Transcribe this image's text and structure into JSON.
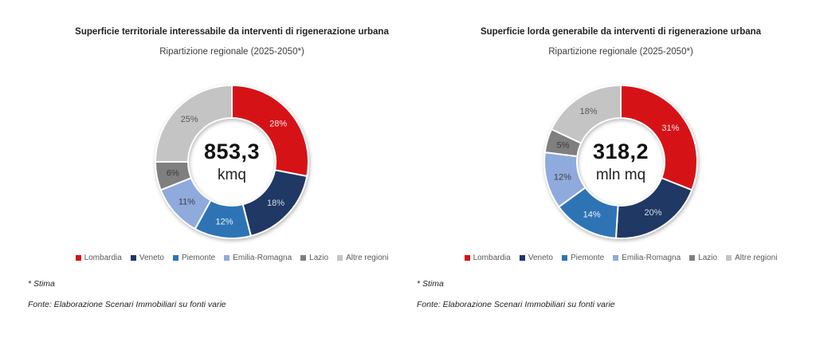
{
  "chart_data": [
    {
      "type": "pie",
      "variant": "donut",
      "title": "Superficie territoriale interessabile da interventi di rigenerazione urbana",
      "subtitle": "Ripartizione regionale (2025-2050*)",
      "categories": [
        "Lombardia",
        "Veneto",
        "Piemonte",
        "Emilia-Romagna",
        "Lazio",
        "Altre regioni"
      ],
      "values": [
        28,
        18,
        12,
        11,
        6,
        25
      ],
      "unit": "%",
      "center_value": "853,3",
      "center_unit": "kmq",
      "colors": [
        "#D51317",
        "#1F3864",
        "#2E74B5",
        "#8FAADC",
        "#7F7F7F",
        "#C4C4C4"
      ],
      "label_colors": [
        "#F5E9E9",
        "#D6DCE5",
        "#EDF3FA",
        "#404040",
        "#3B3B3B",
        "#595959"
      ],
      "start_angle": -90,
      "direction": "clockwise",
      "legend_position": "bottom",
      "footnotes": {
        "stima": "* Stima",
        "fonte": "Fonte: Elaborazione Scenari Immobiliari su fonti varie"
      }
    },
    {
      "type": "pie",
      "variant": "donut",
      "title": "Superficie lorda generabile da interventi di rigenerazione urbana",
      "subtitle": "Ripartizione regionale (2025-2050*)",
      "categories": [
        "Lombardia",
        "Veneto",
        "Piemonte",
        "Emilia-Romagna",
        "Lazio",
        "Altre regioni"
      ],
      "values": [
        31,
        20,
        14,
        12,
        5,
        18
      ],
      "unit": "%",
      "center_value": "318,2",
      "center_unit": "mln mq",
      "colors": [
        "#D51317",
        "#1F3864",
        "#2E74B5",
        "#8FAADC",
        "#7F7F7F",
        "#C4C4C4"
      ],
      "label_colors": [
        "#F5E9E9",
        "#D6DCE5",
        "#EDF3FA",
        "#404040",
        "#3B3B3B",
        "#595959"
      ],
      "start_angle": -90,
      "direction": "clockwise",
      "legend_position": "bottom",
      "footnotes": {
        "stima": "* Stima",
        "fonte": "Fonte: Elaborazione Scenari Immobiliari su fonti varie"
      }
    }
  ]
}
